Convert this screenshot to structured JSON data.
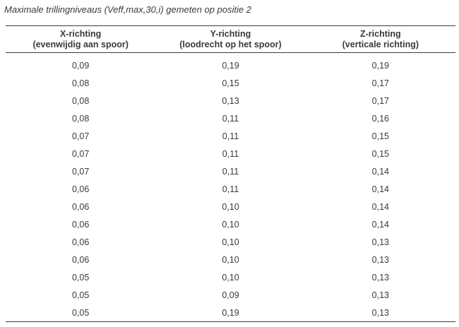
{
  "document": {
    "title": "Maximale trillingniveaus (Veff,max,30,i) gemeten op positie 2"
  },
  "table": {
    "columns": [
      {
        "label": "X-richting",
        "sublabel": "(evenwijdig aan spoor)"
      },
      {
        "label": "Y-richting",
        "sublabel": "(loodrecht op het spoor)"
      },
      {
        "label": "Z-richting",
        "sublabel": "(verticale richting)"
      }
    ],
    "rows": [
      [
        "0,09",
        "0,19",
        "0,19"
      ],
      [
        "0,08",
        "0,15",
        "0,17"
      ],
      [
        "0,08",
        "0,13",
        "0,17"
      ],
      [
        "0,08",
        "0,11",
        "0,16"
      ],
      [
        "0,07",
        "0,11",
        "0,15"
      ],
      [
        "0,07",
        "0,11",
        "0,15"
      ],
      [
        "0,07",
        "0,11",
        "0,14"
      ],
      [
        "0,06",
        "0,11",
        "0,14"
      ],
      [
        "0,06",
        "0,10",
        "0,14"
      ],
      [
        "0,06",
        "0,10",
        "0,14"
      ],
      [
        "0,06",
        "0,10",
        "0,13"
      ],
      [
        "0,06",
        "0,10",
        "0,13"
      ],
      [
        "0,05",
        "0,10",
        "0,13"
      ],
      [
        "0,05",
        "0,09",
        "0,13"
      ],
      [
        "0,05",
        "0,19",
        "0,13"
      ]
    ]
  },
  "colors": {
    "background": "#ffffff",
    "text": "#3a3a3a",
    "rule": "#3b3b3b"
  }
}
